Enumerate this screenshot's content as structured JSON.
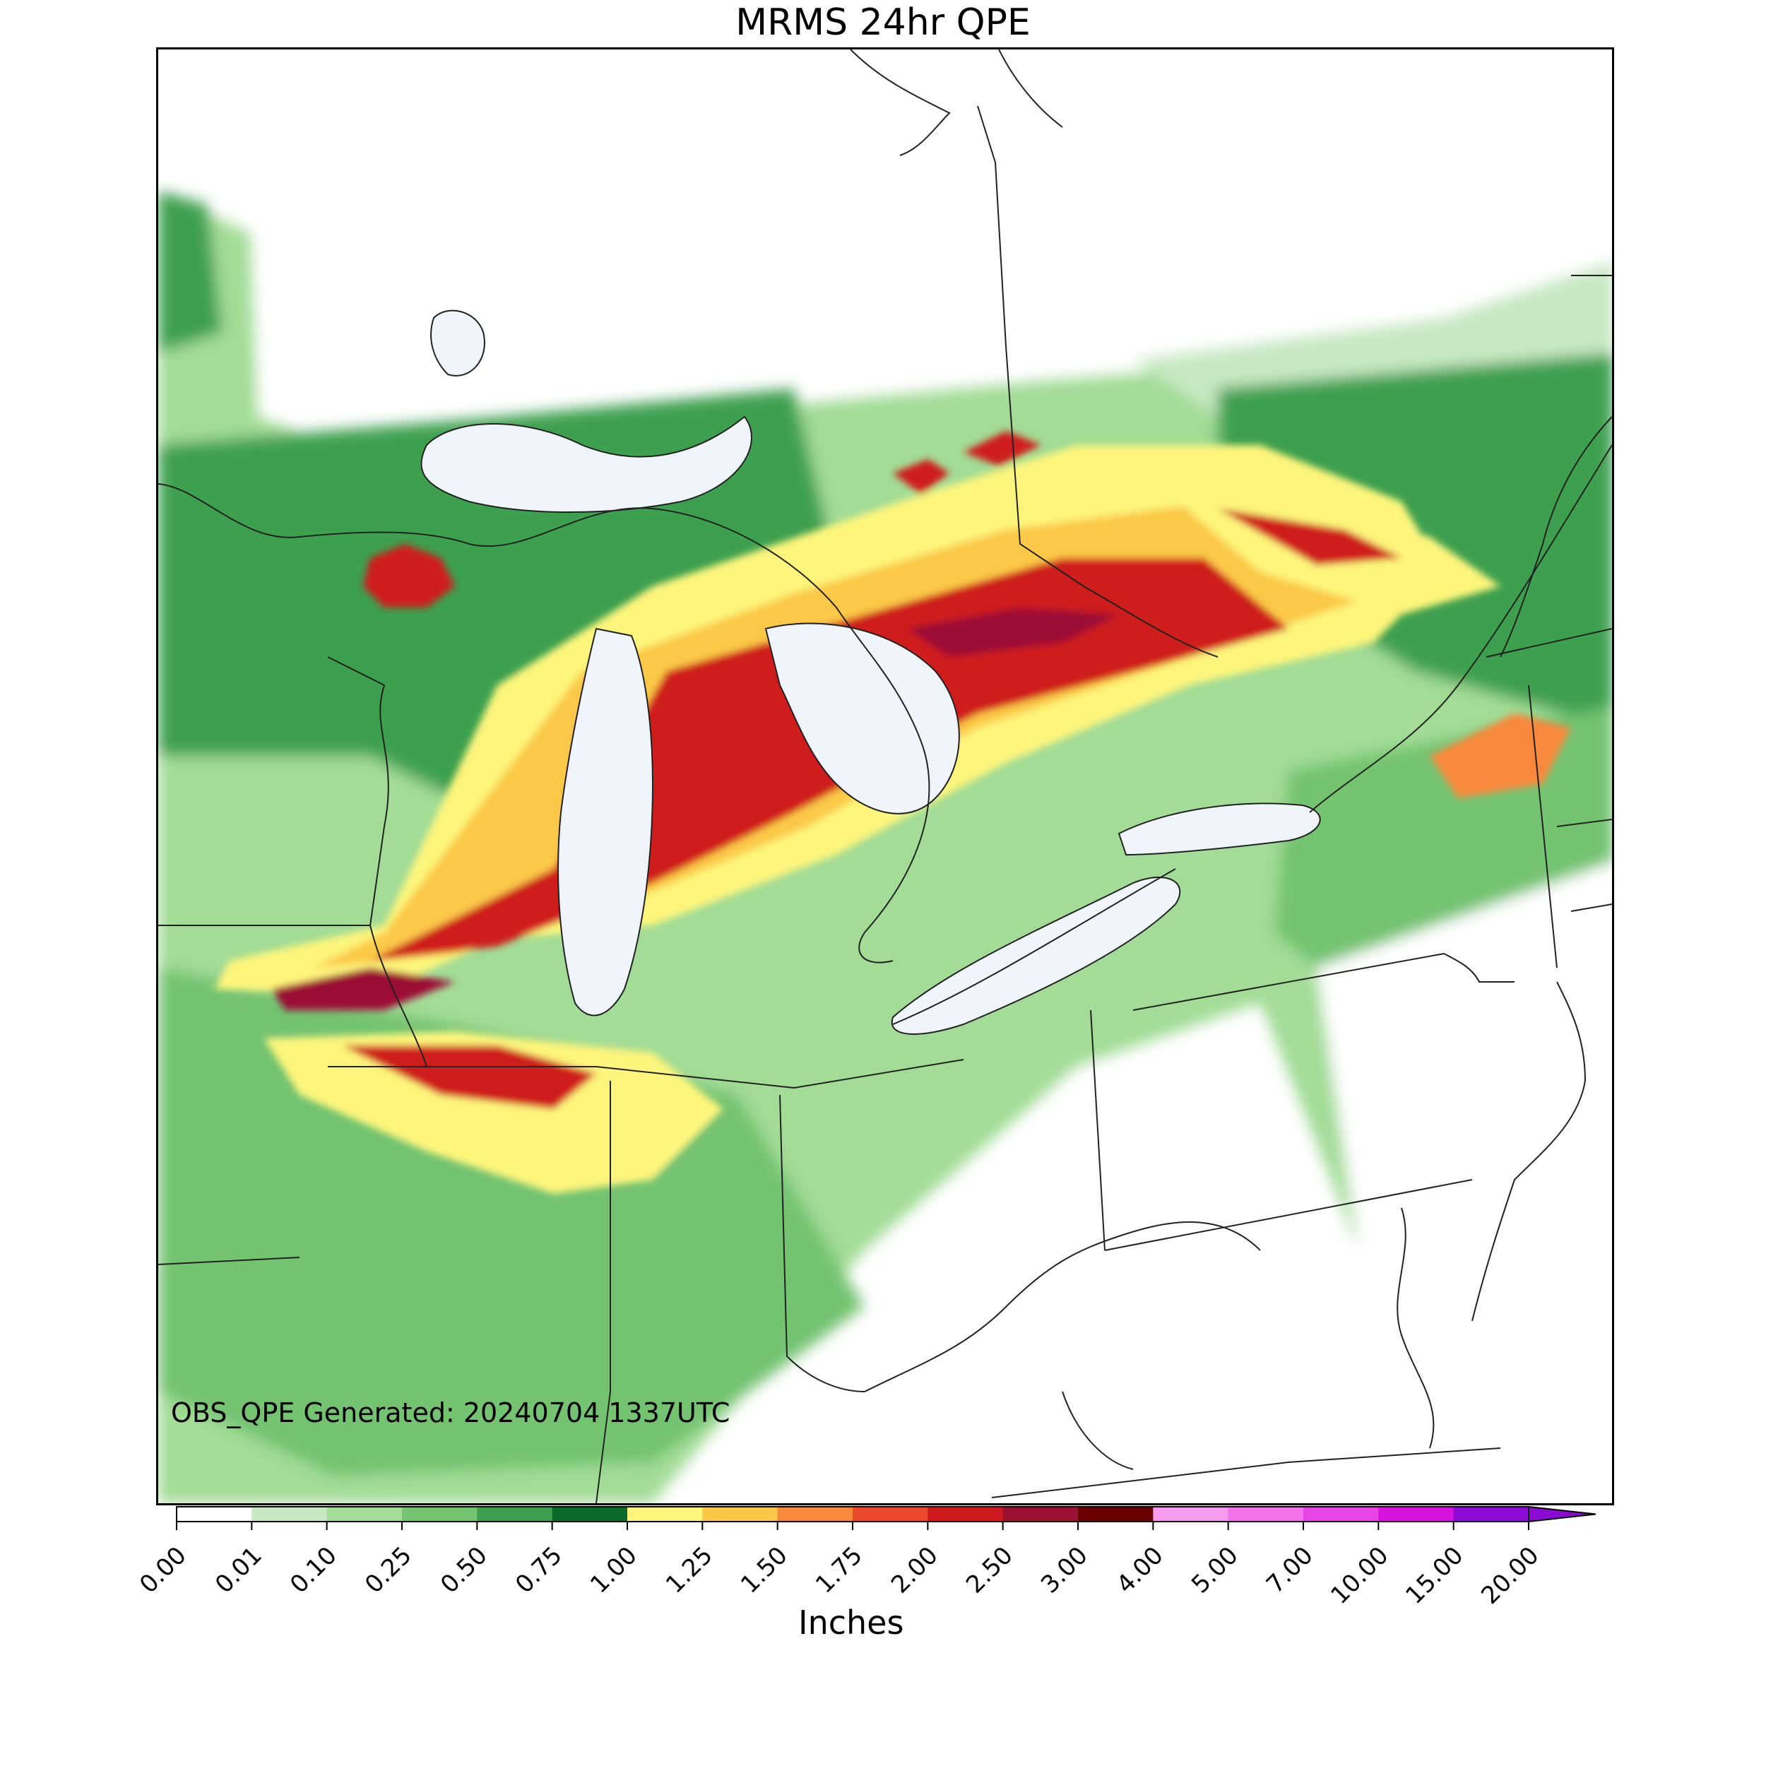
{
  "title": "MRMS 24hr QPE",
  "annotation": "OBS_QPE Generated: 20240704 1337UTC",
  "colorbar": {
    "label": "Inches",
    "ticks": [
      "0.00",
      "0.01",
      "0.10",
      "0.25",
      "0.50",
      "0.75",
      "1.00",
      "1.25",
      "1.50",
      "1.75",
      "2.00",
      "2.50",
      "3.00",
      "4.00",
      "5.00",
      "7.00",
      "10.00",
      "15.00",
      "20.00"
    ],
    "colors": [
      "#ffffff",
      "#c7e8c3",
      "#a2dc96",
      "#73c371",
      "#3ea04f",
      "#0a6a2b",
      "#fdf57c",
      "#fbc947",
      "#f8883b",
      "#ec4a2c",
      "#cf1b1f",
      "#9c1134",
      "#6a0000",
      "#f79bef",
      "#f272ea",
      "#e743e5",
      "#d512de",
      "#8b0ad4"
    ],
    "extend": "max"
  },
  "map": {
    "palette": {
      "light_green": "#c7e8c3",
      "green": "#a2dc96",
      "mid_green": "#73c371",
      "dark_green": "#3ea04f",
      "deep_green": "#0a6a2b",
      "yellow": "#fdf57c",
      "orange_yellow": "#fbc947",
      "orange": "#f8883b",
      "red_orange": "#ec4a2c",
      "red": "#cf1b1f",
      "dark_red": "#9c1134",
      "lake": "#f0f4fb",
      "border": "#222222"
    }
  }
}
